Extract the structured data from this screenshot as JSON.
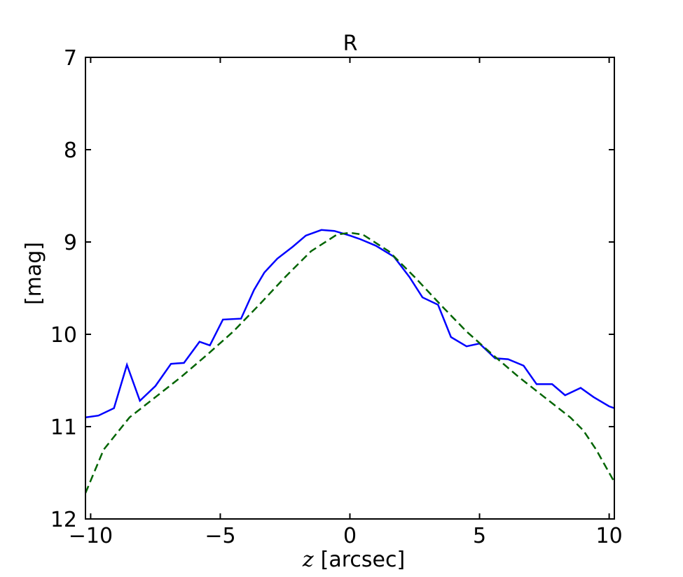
{
  "chart_data": {
    "type": "line",
    "title": "R",
    "xlabel_var": "z",
    "xlabel_unit": "[arcsec]",
    "ylabel": "[mag]",
    "xlim": [
      -10.2,
      10.2
    ],
    "ylim": [
      12,
      7
    ],
    "y_inverted": true,
    "grid": false,
    "xticks": [
      -10,
      -5,
      0,
      5,
      10
    ],
    "xtick_labels": [
      "−10",
      "−5",
      "0",
      "5",
      "10"
    ],
    "yticks": [
      7,
      8,
      9,
      10,
      11,
      12
    ],
    "ytick_labels": [
      "7",
      "8",
      "9",
      "10",
      "11",
      "12"
    ],
    "series": [
      {
        "color": "#0000ff",
        "style": "solid",
        "x": [
          -10.2,
          -9.7,
          -9.1,
          -8.6,
          -8.1,
          -7.5,
          -6.9,
          -6.4,
          -5.8,
          -5.4,
          -4.9,
          -4.2,
          -3.7,
          -3.3,
          -2.8,
          -2.2,
          -1.7,
          -1.1,
          -0.6,
          0.0,
          0.4,
          1.0,
          1.7,
          2.3,
          2.8,
          3.4,
          3.9,
          4.5,
          5.0,
          5.6,
          6.1,
          6.7,
          7.2,
          7.8,
          8.3,
          8.9,
          9.4,
          10.0,
          10.2
        ],
        "y": [
          10.9,
          10.88,
          10.8,
          10.33,
          10.72,
          10.56,
          10.32,
          10.31,
          10.08,
          10.12,
          9.84,
          9.83,
          9.52,
          9.33,
          9.18,
          9.05,
          8.93,
          8.87,
          8.88,
          8.93,
          8.97,
          9.04,
          9.16,
          9.38,
          9.6,
          9.68,
          10.03,
          10.13,
          10.1,
          10.26,
          10.27,
          10.34,
          10.54,
          10.54,
          10.66,
          10.58,
          10.68,
          10.78,
          10.8
        ]
      },
      {
        "color": "#006400",
        "style": "dashed",
        "x": [
          -10.2,
          -9.5,
          -8.5,
          -7.5,
          -6.5,
          -5.5,
          -4.5,
          -3.5,
          -2.5,
          -1.5,
          -0.5,
          0.0,
          0.5,
          1.5,
          2.5,
          3.5,
          4.5,
          5.5,
          6.5,
          7.5,
          8.5,
          9.0,
          9.5,
          10.2
        ],
        "y": [
          11.72,
          11.25,
          10.9,
          10.68,
          10.46,
          10.22,
          9.97,
          9.68,
          9.38,
          9.1,
          8.92,
          8.9,
          8.92,
          9.1,
          9.38,
          9.68,
          9.97,
          10.22,
          10.46,
          10.68,
          10.9,
          11.04,
          11.25,
          11.6
        ]
      }
    ]
  }
}
